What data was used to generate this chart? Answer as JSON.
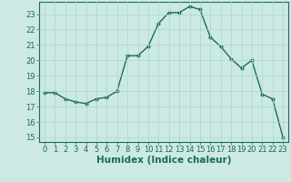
{
  "title": "",
  "xlabel": "Humidex (Indice chaleur)",
  "ylabel": "",
  "background_color": "#cce9e4",
  "line_color": "#1a6b5a",
  "marker_color": "#1a6b5a",
  "x": [
    0,
    1,
    2,
    3,
    4,
    5,
    6,
    7,
    8,
    9,
    10,
    11,
    12,
    13,
    14,
    15,
    16,
    17,
    18,
    19,
    20,
    21,
    22,
    23
  ],
  "y": [
    17.9,
    17.9,
    17.5,
    17.3,
    17.2,
    17.5,
    17.6,
    18.0,
    20.3,
    20.3,
    20.9,
    22.4,
    23.1,
    23.1,
    23.5,
    23.3,
    21.5,
    20.9,
    20.1,
    19.5,
    20.0,
    17.8,
    17.5,
    15.0
  ],
  "ylim": [
    14.7,
    23.8
  ],
  "xlim": [
    -0.5,
    23.5
  ],
  "yticks": [
    15,
    16,
    17,
    18,
    19,
    20,
    21,
    22,
    23
  ],
  "xticks": [
    0,
    1,
    2,
    3,
    4,
    5,
    6,
    7,
    8,
    9,
    10,
    11,
    12,
    13,
    14,
    15,
    16,
    17,
    18,
    19,
    20,
    21,
    22,
    23
  ],
  "grid_color": "#a8d8ce",
  "marker_size": 2.5,
  "line_width": 1.0,
  "tick_fontsize": 6.0,
  "xlabel_fontsize": 7.5
}
